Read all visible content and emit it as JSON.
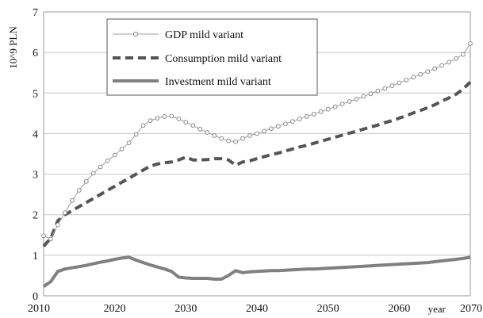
{
  "chart_data": {
    "type": "line",
    "title": "",
    "xlabel": "year",
    "ylabel": "10^9 PLN",
    "xlim": [
      2010,
      2070
    ],
    "ylim": [
      0,
      7
    ],
    "xticks": [
      2010,
      2020,
      2030,
      2040,
      2050,
      2060,
      2070
    ],
    "yticks": [
      0,
      1,
      2,
      3,
      4,
      5,
      6,
      7
    ],
    "grid": "horizontal",
    "legend_position": "top-center",
    "series": [
      {
        "name": "GDP mild variant",
        "style": "thin line with open circle markers",
        "color": "#a0a0a0",
        "x": [
          2010,
          2011,
          2012,
          2013,
          2014,
          2015,
          2016,
          2017,
          2018,
          2019,
          2020,
          2021,
          2022,
          2023,
          2024,
          2025,
          2026,
          2027,
          2028,
          2029,
          2030,
          2031,
          2032,
          2033,
          2034,
          2035,
          2036,
          2037,
          2038,
          2039,
          2040,
          2041,
          2042,
          2043,
          2044,
          2045,
          2046,
          2047,
          2048,
          2049,
          2050,
          2051,
          2052,
          2053,
          2054,
          2055,
          2056,
          2057,
          2058,
          2059,
          2060,
          2061,
          2062,
          2063,
          2064,
          2065,
          2066,
          2067,
          2068,
          2069,
          2070
        ],
        "y": [
          1.48,
          1.4,
          1.75,
          2.05,
          2.35,
          2.6,
          2.82,
          3.02,
          3.18,
          3.33,
          3.47,
          3.62,
          3.77,
          3.98,
          4.2,
          4.32,
          4.38,
          4.42,
          4.43,
          4.36,
          4.28,
          4.2,
          4.11,
          4.03,
          3.95,
          3.88,
          3.82,
          3.8,
          3.88,
          3.95,
          4.0,
          4.06,
          4.12,
          4.18,
          4.24,
          4.3,
          4.36,
          4.42,
          4.48,
          4.54,
          4.6,
          4.66,
          4.73,
          4.79,
          4.85,
          4.92,
          4.98,
          5.05,
          5.11,
          5.18,
          5.25,
          5.32,
          5.39,
          5.46,
          5.53,
          5.6,
          5.68,
          5.76,
          5.85,
          5.95,
          6.22
        ]
      },
      {
        "name": "Consumption mild variant",
        "style": "thick dashed line",
        "color": "#555555",
        "x": [
          2010,
          2011,
          2012,
          2013,
          2014,
          2015,
          2016,
          2017,
          2018,
          2019,
          2020,
          2021,
          2022,
          2023,
          2024,
          2025,
          2026,
          2027,
          2028,
          2029,
          2030,
          2031,
          2032,
          2033,
          2034,
          2035,
          2036,
          2037,
          2038,
          2039,
          2040,
          2041,
          2042,
          2043,
          2044,
          2045,
          2046,
          2047,
          2048,
          2049,
          2050,
          2051,
          2052,
          2053,
          2054,
          2055,
          2056,
          2057,
          2058,
          2059,
          2060,
          2061,
          2062,
          2063,
          2064,
          2065,
          2066,
          2067,
          2068,
          2069,
          2070
        ],
        "y": [
          1.22,
          1.42,
          1.85,
          2.0,
          2.1,
          2.2,
          2.3,
          2.4,
          2.5,
          2.6,
          2.7,
          2.8,
          2.9,
          3.0,
          3.1,
          3.2,
          3.25,
          3.28,
          3.3,
          3.35,
          3.42,
          3.35,
          3.35,
          3.36,
          3.38,
          3.38,
          3.35,
          3.22,
          3.3,
          3.33,
          3.38,
          3.43,
          3.48,
          3.52,
          3.57,
          3.62,
          3.67,
          3.71,
          3.76,
          3.81,
          3.86,
          3.91,
          3.96,
          4.01,
          4.06,
          4.11,
          4.16,
          4.21,
          4.27,
          4.32,
          4.38,
          4.44,
          4.51,
          4.57,
          4.64,
          4.71,
          4.8,
          4.88,
          4.97,
          5.1,
          5.27
        ]
      },
      {
        "name": "Investment mild variant",
        "style": "thick solid line",
        "color": "#808080",
        "x": [
          2010,
          2011,
          2012,
          2013,
          2014,
          2015,
          2016,
          2017,
          2018,
          2019,
          2020,
          2021,
          2022,
          2023,
          2024,
          2025,
          2026,
          2027,
          2028,
          2029,
          2030,
          2031,
          2032,
          2033,
          2034,
          2035,
          2036,
          2037,
          2038,
          2039,
          2040,
          2041,
          2042,
          2043,
          2044,
          2045,
          2046,
          2047,
          2048,
          2049,
          2050,
          2051,
          2052,
          2053,
          2054,
          2055,
          2056,
          2057,
          2058,
          2059,
          2060,
          2061,
          2062,
          2063,
          2064,
          2065,
          2066,
          2067,
          2068,
          2069,
          2070
        ],
        "y": [
          0.23,
          0.35,
          0.6,
          0.66,
          0.69,
          0.72,
          0.75,
          0.79,
          0.83,
          0.86,
          0.9,
          0.93,
          0.95,
          0.88,
          0.82,
          0.76,
          0.71,
          0.66,
          0.6,
          0.46,
          0.44,
          0.43,
          0.43,
          0.43,
          0.41,
          0.41,
          0.5,
          0.62,
          0.57,
          0.59,
          0.6,
          0.61,
          0.62,
          0.62,
          0.63,
          0.64,
          0.65,
          0.66,
          0.66,
          0.67,
          0.68,
          0.69,
          0.7,
          0.71,
          0.72,
          0.73,
          0.74,
          0.75,
          0.76,
          0.77,
          0.78,
          0.79,
          0.8,
          0.81,
          0.82,
          0.84,
          0.86,
          0.88,
          0.9,
          0.92,
          0.95
        ]
      }
    ]
  }
}
